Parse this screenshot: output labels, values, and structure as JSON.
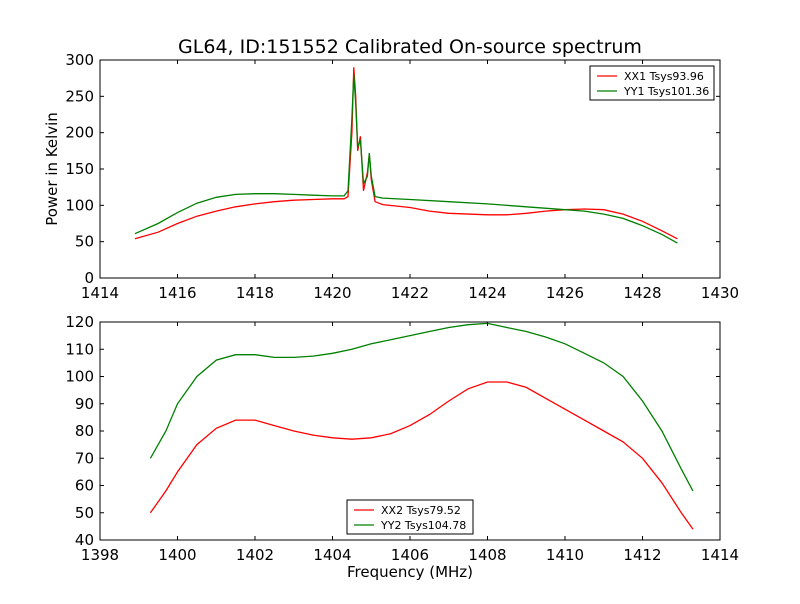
{
  "chart_data": [
    {
      "type": "line",
      "title": "GL64, ID:151552 Calibrated On-source spectrum",
      "xlabel": "",
      "ylabel": "Power in Kelvin",
      "xlim": [
        1414,
        1430
      ],
      "ylim": [
        0,
        300
      ],
      "xticks": [
        1414,
        1416,
        1418,
        1420,
        1422,
        1424,
        1426,
        1428,
        1430
      ],
      "yticks": [
        0,
        50,
        100,
        150,
        200,
        250,
        300
      ],
      "grid": false,
      "legend_position": "top-right",
      "series": [
        {
          "name": "XX1 Tsys93.96",
          "color": "#ff0000",
          "x": [
            1414.9,
            1415.5,
            1416,
            1416.5,
            1417,
            1417.5,
            1418,
            1418.5,
            1419,
            1419.5,
            1420,
            1420.3,
            1420.4,
            1420.5,
            1420.55,
            1420.6,
            1420.65,
            1420.72,
            1420.8,
            1420.9,
            1420.95,
            1421.0,
            1421.1,
            1421.3,
            1422,
            1422.5,
            1423,
            1424,
            1424.5,
            1425,
            1425.5,
            1426,
            1426.5,
            1427,
            1427.5,
            1428,
            1428.5,
            1428.9
          ],
          "y": [
            54,
            63,
            75,
            85,
            92,
            98,
            102,
            105,
            107,
            108,
            109,
            109,
            112,
            200,
            290,
            250,
            175,
            195,
            120,
            145,
            170,
            135,
            105,
            101,
            97,
            92,
            89,
            87,
            87,
            89,
            92,
            94,
            95,
            94,
            88,
            78,
            65,
            54
          ]
        },
        {
          "name": "YY1 Tsys101.36",
          "color": "#008000",
          "x": [
            1414.9,
            1415.5,
            1416,
            1416.5,
            1417,
            1417.5,
            1418,
            1418.5,
            1419,
            1419.5,
            1420,
            1420.3,
            1420.4,
            1420.5,
            1420.55,
            1420.6,
            1420.65,
            1420.72,
            1420.8,
            1420.9,
            1420.95,
            1421.0,
            1421.1,
            1421.3,
            1422,
            1423,
            1424,
            1425,
            1426,
            1426.5,
            1427,
            1427.5,
            1428,
            1428.5,
            1428.9
          ],
          "y": [
            61,
            75,
            90,
            103,
            111,
            115,
            116,
            116,
            115,
            114,
            113,
            113,
            120,
            220,
            280,
            240,
            180,
            190,
            130,
            140,
            172,
            140,
            112,
            110,
            108,
            105,
            102,
            98,
            94,
            92,
            88,
            82,
            72,
            60,
            48
          ]
        }
      ]
    },
    {
      "type": "line",
      "title": "",
      "xlabel": "Frequency (MHz)",
      "ylabel": "",
      "xlim": [
        1398,
        1414
      ],
      "ylim": [
        40,
        120
      ],
      "xticks": [
        1398,
        1400,
        1402,
        1404,
        1406,
        1408,
        1410,
        1412,
        1414
      ],
      "yticks": [
        40,
        50,
        60,
        70,
        80,
        90,
        100,
        110,
        120
      ],
      "grid": false,
      "legend_position": "bottom-center",
      "series": [
        {
          "name": "XX2 Tsys79.52",
          "color": "#ff0000",
          "x": [
            1399.3,
            1399.7,
            1400,
            1400.5,
            1401,
            1401.5,
            1402,
            1402.5,
            1403,
            1403.5,
            1404,
            1404.5,
            1405,
            1405.5,
            1406,
            1406.5,
            1407,
            1407.5,
            1408,
            1408.5,
            1409,
            1409.5,
            1410,
            1410.5,
            1411,
            1411.5,
            1412,
            1412.5,
            1413,
            1413.3
          ],
          "y": [
            50,
            58,
            65,
            75,
            81,
            84,
            84,
            82,
            80,
            78.5,
            77.5,
            77,
            77.5,
            79,
            82,
            86,
            91,
            95.5,
            98,
            98,
            96,
            92,
            88,
            84,
            80,
            76,
            70,
            61,
            50,
            44
          ]
        },
        {
          "name": "YY2 Tsys104.78",
          "color": "#008000",
          "x": [
            1399.3,
            1399.7,
            1400,
            1400.5,
            1401,
            1401.5,
            1402,
            1402.5,
            1403,
            1403.5,
            1404,
            1404.5,
            1405,
            1405.5,
            1406,
            1406.5,
            1407,
            1407.5,
            1408,
            1408.5,
            1409,
            1409.5,
            1410,
            1410.5,
            1411,
            1411.5,
            1412,
            1412.5,
            1413,
            1413.3
          ],
          "y": [
            70,
            80,
            90,
            100,
            106,
            108,
            108,
            107,
            107,
            107.5,
            108.5,
            110,
            112,
            113.5,
            115,
            116.5,
            118,
            119,
            119.5,
            118,
            116.5,
            114.5,
            112,
            108.5,
            105,
            100,
            91,
            80,
            66,
            58
          ]
        }
      ]
    }
  ]
}
